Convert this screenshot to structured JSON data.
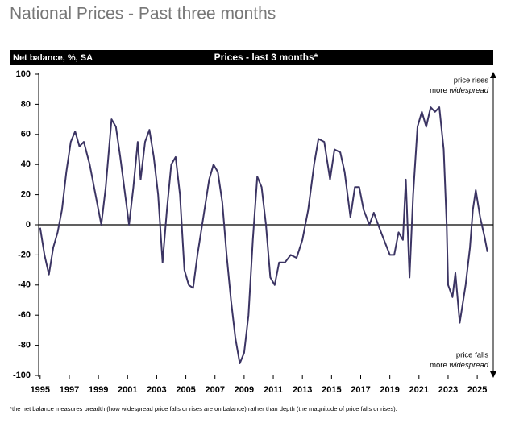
{
  "chart_data": {
    "type": "line",
    "title": "National Prices - Past three months",
    "y_label": "Net balance, %, SA",
    "subtitle": "Prices - last 3 months*",
    "annotations_top": [
      "price rises",
      "more",
      "widespread"
    ],
    "annotations_bottom": [
      "price falls",
      "more",
      "widespread"
    ],
    "footnote": "*the net balance measures breadth (how widespread price falls or rises are on balance) rather than depth (the magnitude of price falls or rises).",
    "x": [
      1995.0,
      1995.3,
      1995.6,
      1995.9,
      1996.2,
      1996.5,
      1996.8,
      1997.1,
      1997.4,
      1997.7,
      1998.0,
      1998.4,
      1998.8,
      1999.2,
      1999.5,
      1999.9,
      2000.2,
      2000.5,
      2000.9,
      2001.1,
      2001.4,
      2001.7,
      2001.9,
      2002.2,
      2002.5,
      2002.8,
      2003.1,
      2003.4,
      2003.7,
      2004.0,
      2004.3,
      2004.6,
      2004.9,
      2005.2,
      2005.5,
      2005.8,
      2006.2,
      2006.6,
      2006.9,
      2007.2,
      2007.5,
      2007.8,
      2008.1,
      2008.4,
      2008.7,
      2009.0,
      2009.3,
      2009.6,
      2009.9,
      2010.2,
      2010.5,
      2010.8,
      2011.1,
      2011.4,
      2011.8,
      2012.2,
      2012.6,
      2013.0,
      2013.4,
      2013.8,
      2014.1,
      2014.5,
      2014.9,
      2015.2,
      2015.6,
      2015.9,
      2016.3,
      2016.6,
      2016.9,
      2017.2,
      2017.6,
      2017.9,
      2018.2,
      2018.6,
      2019.0,
      2019.3,
      2019.6,
      2019.9,
      2020.1,
      2020.35,
      2020.6,
      2020.9,
      2021.2,
      2021.5,
      2021.8,
      2022.1,
      2022.4,
      2022.7,
      2022.9,
      2023.0,
      2023.3,
      2023.5,
      2023.8,
      2024.2,
      2024.5,
      2024.7,
      2024.9,
      2025.2,
      2025.5,
      2025.7
    ],
    "series": [
      {
        "name": "Prices - last 3 months",
        "color": "#3b3463",
        "values": [
          -2,
          -20,
          -33,
          -15,
          -5,
          10,
          35,
          55,
          62,
          52,
          55,
          40,
          20,
          0,
          25,
          70,
          65,
          45,
          15,
          0,
          25,
          55,
          30,
          55,
          63,
          45,
          20,
          -25,
          10,
          40,
          45,
          20,
          -30,
          -40,
          -42,
          -20,
          5,
          30,
          40,
          35,
          15,
          -20,
          -50,
          -75,
          -92,
          -85,
          -60,
          -10,
          32,
          25,
          0,
          -35,
          -40,
          -25,
          -25,
          -20,
          -22,
          -10,
          10,
          40,
          57,
          55,
          30,
          50,
          48,
          35,
          5,
          25,
          25,
          10,
          0,
          8,
          0,
          -10,
          -20,
          -20,
          -5,
          -10,
          30,
          -35,
          20,
          65,
          75,
          65,
          78,
          75,
          78,
          50,
          0,
          -40,
          -48,
          -32,
          -65,
          -40,
          -15,
          10,
          23,
          5,
          -8,
          -18
        ]
      }
    ],
    "xlim": [
      1994.9,
      2026.1
    ],
    "ylim": [
      -100,
      100
    ],
    "xticks": [
      1995,
      1997,
      1999,
      2001,
      2003,
      2005,
      2007,
      2009,
      2011,
      2013,
      2015,
      2017,
      2019,
      2021,
      2023,
      2025
    ],
    "yticks": [
      -100,
      -80,
      -60,
      -40,
      -20,
      0,
      20,
      40,
      60,
      80,
      100
    ]
  }
}
